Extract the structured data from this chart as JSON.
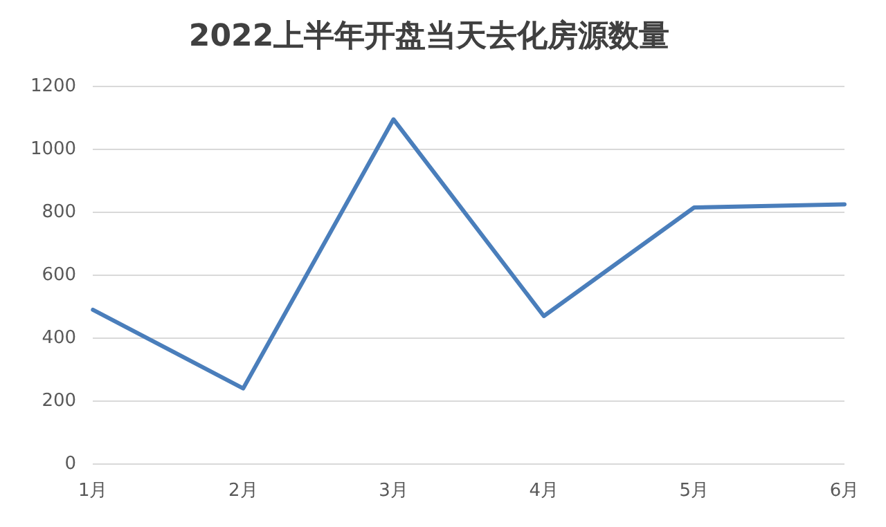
{
  "chart_data": {
    "type": "line",
    "title": "2022上半年开盘当天去化房源数量",
    "categories": [
      "1月",
      "2月",
      "3月",
      "4月",
      "5月",
      "6月"
    ],
    "series": [
      {
        "color": "#4a7ebb",
        "values": [
          490,
          240,
          1095,
          470,
          815,
          825
        ]
      }
    ],
    "ylim": [
      0,
      1200
    ],
    "yticks": [
      0,
      200,
      400,
      600,
      800,
      1000,
      1200
    ],
    "grid": "y",
    "legend": false,
    "marker": "none",
    "line_style": "solid"
  }
}
